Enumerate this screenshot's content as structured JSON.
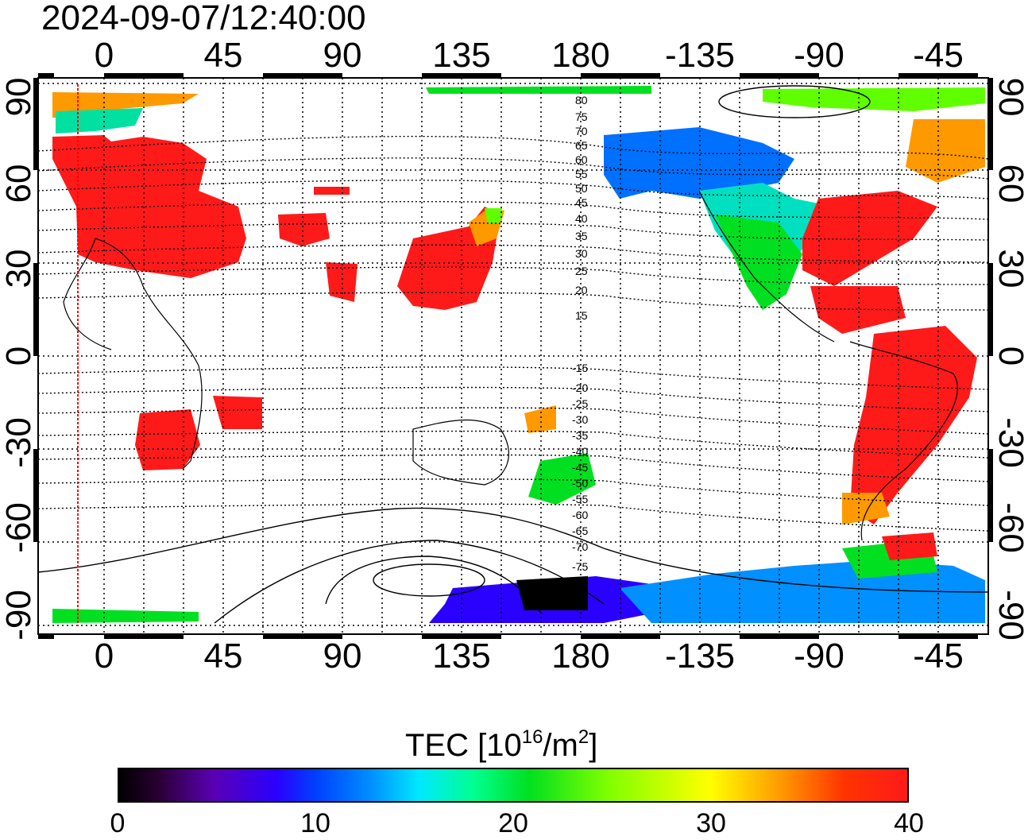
{
  "timestamp": "2024-09-07/12:40:00",
  "longitude_ticks_top": [
    "0",
    "45",
    "90",
    "135",
    "180",
    "-135",
    "-90",
    "-45"
  ],
  "longitude_ticks_bottom": [
    "0",
    "45",
    "90",
    "135",
    "180",
    "-135",
    "-90",
    "-45"
  ],
  "latitude_ticks_left": [
    "90",
    "60",
    "30",
    "0",
    "-30",
    "-60",
    "-90"
  ],
  "latitude_ticks_right": [
    "90",
    "60",
    "30",
    "0",
    "-30",
    "-60",
    "-90"
  ],
  "contour_labels_north": [
    "80",
    "75",
    "70",
    "65",
    "60",
    "55",
    "50",
    "45",
    "40",
    "35",
    "30",
    "25",
    "20",
    "15"
  ],
  "contour_labels_south": [
    "-15",
    "-20",
    "-25",
    "-30",
    "-35",
    "-40",
    "-45",
    "-50",
    "-55",
    "-60",
    "-65",
    "-70",
    "-75"
  ],
  "colorbar": {
    "title_main": "TEC  [10",
    "title_sup1": "16",
    "title_mid": "/m",
    "title_sup2": "2",
    "title_end": "]",
    "ticks": [
      "0",
      "10",
      "20",
      "30",
      "40"
    ],
    "min": 0,
    "max": 40
  },
  "colors": {
    "high_tec": "#ff1a1a",
    "mid_tec": "#00e020",
    "low_tec": "#2a00ff",
    "grid": "#000000",
    "terminator": "#ff0000"
  }
}
